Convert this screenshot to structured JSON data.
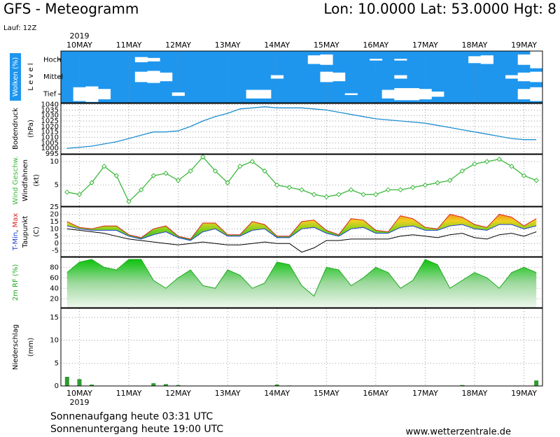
{
  "header": {
    "title": "GFS - Meteogramm",
    "location": "Lon: 10.0000  Lat: 53.0000  Hgt: 8",
    "run": "Lauf: 12Z"
  },
  "chart_data": [
    {
      "type": "heatmap",
      "ylabel": "Wolken (%)",
      "level_label": "L e v e l",
      "year_label": "2019",
      "color": "#1e96ee",
      "categories": [
        null,
        "10MAY",
        null,
        null,
        null,
        "11MAY",
        null,
        null,
        null,
        "12MAY",
        null,
        null,
        null,
        "13MAY",
        null,
        null,
        null,
        "14MAY",
        null,
        null,
        null,
        "15MAY",
        null,
        null,
        null,
        "16MAY",
        null,
        null,
        null,
        "17MAY",
        null,
        null,
        null,
        "18MAY",
        null,
        null,
        null,
        "19MAY",
        null
      ],
      "series": [
        {
          "name": "Hoch",
          "color": "#ffffff",
          "values": [
            0,
            0,
            0,
            0,
            0,
            0,
            30,
            20,
            0,
            0,
            0,
            0,
            0,
            0,
            0,
            0,
            0,
            0,
            0,
            0,
            50,
            60,
            0,
            0,
            0,
            10,
            0,
            10,
            0,
            0,
            0,
            0,
            0,
            40,
            50,
            0,
            0,
            60,
            100
          ]
        },
        {
          "name": "Mittel",
          "color": "#ffffff",
          "values": [
            0,
            0,
            0,
            0,
            0,
            0,
            60,
            70,
            50,
            0,
            0,
            0,
            0,
            0,
            0,
            0,
            0,
            20,
            0,
            0,
            0,
            60,
            50,
            0,
            0,
            0,
            0,
            20,
            0,
            0,
            0,
            0,
            0,
            0,
            0,
            0,
            20,
            50,
            60
          ]
        },
        {
          "name": "Tief",
          "color": "#ffffff",
          "values": [
            0,
            80,
            90,
            60,
            0,
            0,
            0,
            0,
            0,
            20,
            0,
            0,
            0,
            0,
            0,
            50,
            50,
            0,
            0,
            0,
            0,
            0,
            0,
            10,
            0,
            0,
            50,
            70,
            70,
            60,
            30,
            0,
            0,
            0,
            0,
            0,
            0,
            60,
            80
          ]
        }
      ]
    },
    {
      "type": "line",
      "ylabel": "Bodendruck",
      "unit": "(hPa)",
      "color": "#1e8fd0",
      "values": [
        1000,
        1001,
        1002,
        1004,
        1006,
        1009,
        1012,
        1015,
        1015,
        1016,
        1020,
        1025,
        1029,
        1032,
        1036,
        1037,
        1038,
        1037,
        1037,
        1037,
        1036,
        1035,
        1033,
        1031,
        1029,
        1027,
        1026,
        1025,
        1024,
        1023,
        1021,
        1019,
        1017,
        1015,
        1013,
        1011,
        1009,
        1008,
        1008
      ],
      "ylim": [
        995,
        1041
      ],
      "yticks": [
        995,
        1000,
        1005,
        1010,
        1015,
        1020,
        1025,
        1030,
        1035,
        1040
      ],
      "grid": true
    },
    {
      "type": "line",
      "label2": "Windfahnen",
      "unit": "(kt)",
      "markers": true,
      "series": [
        {
          "name": "Wind Geschw.",
          "color": "#3cb83c",
          "values": [
            3.5,
            3,
            5.5,
            9,
            7,
            1.5,
            4,
            7,
            7.5,
            6,
            8,
            11,
            8,
            5.5,
            9,
            10,
            8,
            5,
            4.5,
            4,
            3,
            2.5,
            3,
            4,
            3,
            3,
            4,
            4,
            4.5,
            5,
            5.5,
            6,
            8,
            9.5,
            10,
            10.5,
            9,
            7,
            6
          ]
        }
      ],
      "ylim": [
        0.5,
        11.5
      ],
      "yticks": [
        5,
        10
      ],
      "grid": true
    },
    {
      "type": "area",
      "label_separator": ", ",
      "unit": "(C)",
      "fill_between": true,
      "series": [
        {
          "name": "T-Min",
          "color": "#2040d0",
          "values": [
            12,
            10,
            9,
            9,
            9,
            5,
            3,
            6,
            8,
            4,
            2,
            8,
            10,
            5,
            5,
            9,
            10,
            4,
            4,
            10,
            11,
            7,
            5,
            10,
            11,
            7,
            7,
            11,
            12,
            9,
            9,
            12,
            13,
            10,
            9,
            13,
            13,
            10,
            12
          ]
        },
        {
          "name": "Max",
          "color": "#e02020",
          "values": [
            15,
            11,
            10,
            12,
            12,
            6,
            4,
            10,
            12,
            5,
            3,
            14,
            14,
            6,
            6,
            15,
            13,
            5,
            5,
            15,
            16,
            9,
            6,
            17,
            16,
            9,
            8,
            19,
            17,
            11,
            10,
            20,
            18,
            13,
            11,
            20,
            18,
            12,
            17
          ]
        },
        {
          "name": "Taupunkt",
          "color": "#000000",
          "values": [
            10,
            9,
            8,
            7,
            5,
            3,
            2,
            1,
            0,
            -1,
            0,
            1,
            0,
            -1,
            -1,
            0,
            1,
            0,
            0,
            -6,
            -3,
            2,
            2,
            3,
            3,
            3,
            3,
            5,
            6,
            5,
            4,
            6,
            7,
            4,
            3,
            6,
            7,
            5,
            8
          ]
        }
      ],
      "ylim": [
        -9,
        25
      ],
      "yticks": [
        -5,
        0,
        5,
        10,
        15,
        20,
        25
      ],
      "grid": true
    },
    {
      "type": "area",
      "ylabel": "2m RF (%)",
      "color": "#22a822",
      "values": [
        70,
        90,
        95,
        80,
        75,
        95,
        95,
        55,
        40,
        60,
        75,
        45,
        40,
        75,
        65,
        40,
        50,
        90,
        85,
        45,
        25,
        80,
        75,
        45,
        60,
        80,
        70,
        40,
        55,
        95,
        85,
        40,
        55,
        70,
        60,
        40,
        70,
        80,
        70
      ],
      "ylim": [
        3,
        99
      ],
      "yticks": [
        20,
        40,
        60,
        80
      ],
      "grid": true
    },
    {
      "type": "bar",
      "ylabel": "Niederschlag",
      "unit": "(mm)",
      "year_label": "2019",
      "color": "#2e9b2e",
      "categories": [
        null,
        "10MAY",
        null,
        null,
        null,
        "11MAY",
        null,
        null,
        null,
        "12MAY",
        null,
        null,
        null,
        "13MAY",
        null,
        null,
        null,
        "14MAY",
        null,
        null,
        null,
        "15MAY",
        null,
        null,
        null,
        "16MAY",
        null,
        null,
        null,
        "17MAY",
        null,
        null,
        null,
        "18MAY",
        null,
        null,
        null,
        "19MAY",
        null
      ],
      "values": [
        2,
        1.5,
        0.3,
        0,
        0,
        0,
        0,
        0.6,
        0.4,
        0.2,
        0,
        0,
        0,
        0,
        0,
        0,
        0,
        0.3,
        0.1,
        0,
        0,
        0,
        0,
        0,
        0,
        0,
        0,
        0,
        0,
        0,
        0,
        0,
        0.2,
        0,
        0,
        0,
        0,
        0,
        1.2
      ],
      "ylim": [
        0,
        17
      ],
      "yticks": [
        0,
        5,
        10,
        15
      ],
      "grid": true
    }
  ],
  "footer": {
    "sunrise": "Sonnenaufgang heute 03:31 UTC",
    "sunset": "Sonnenuntergang heute 19:00 UTC",
    "source": "www.wetterzentrale.de"
  }
}
